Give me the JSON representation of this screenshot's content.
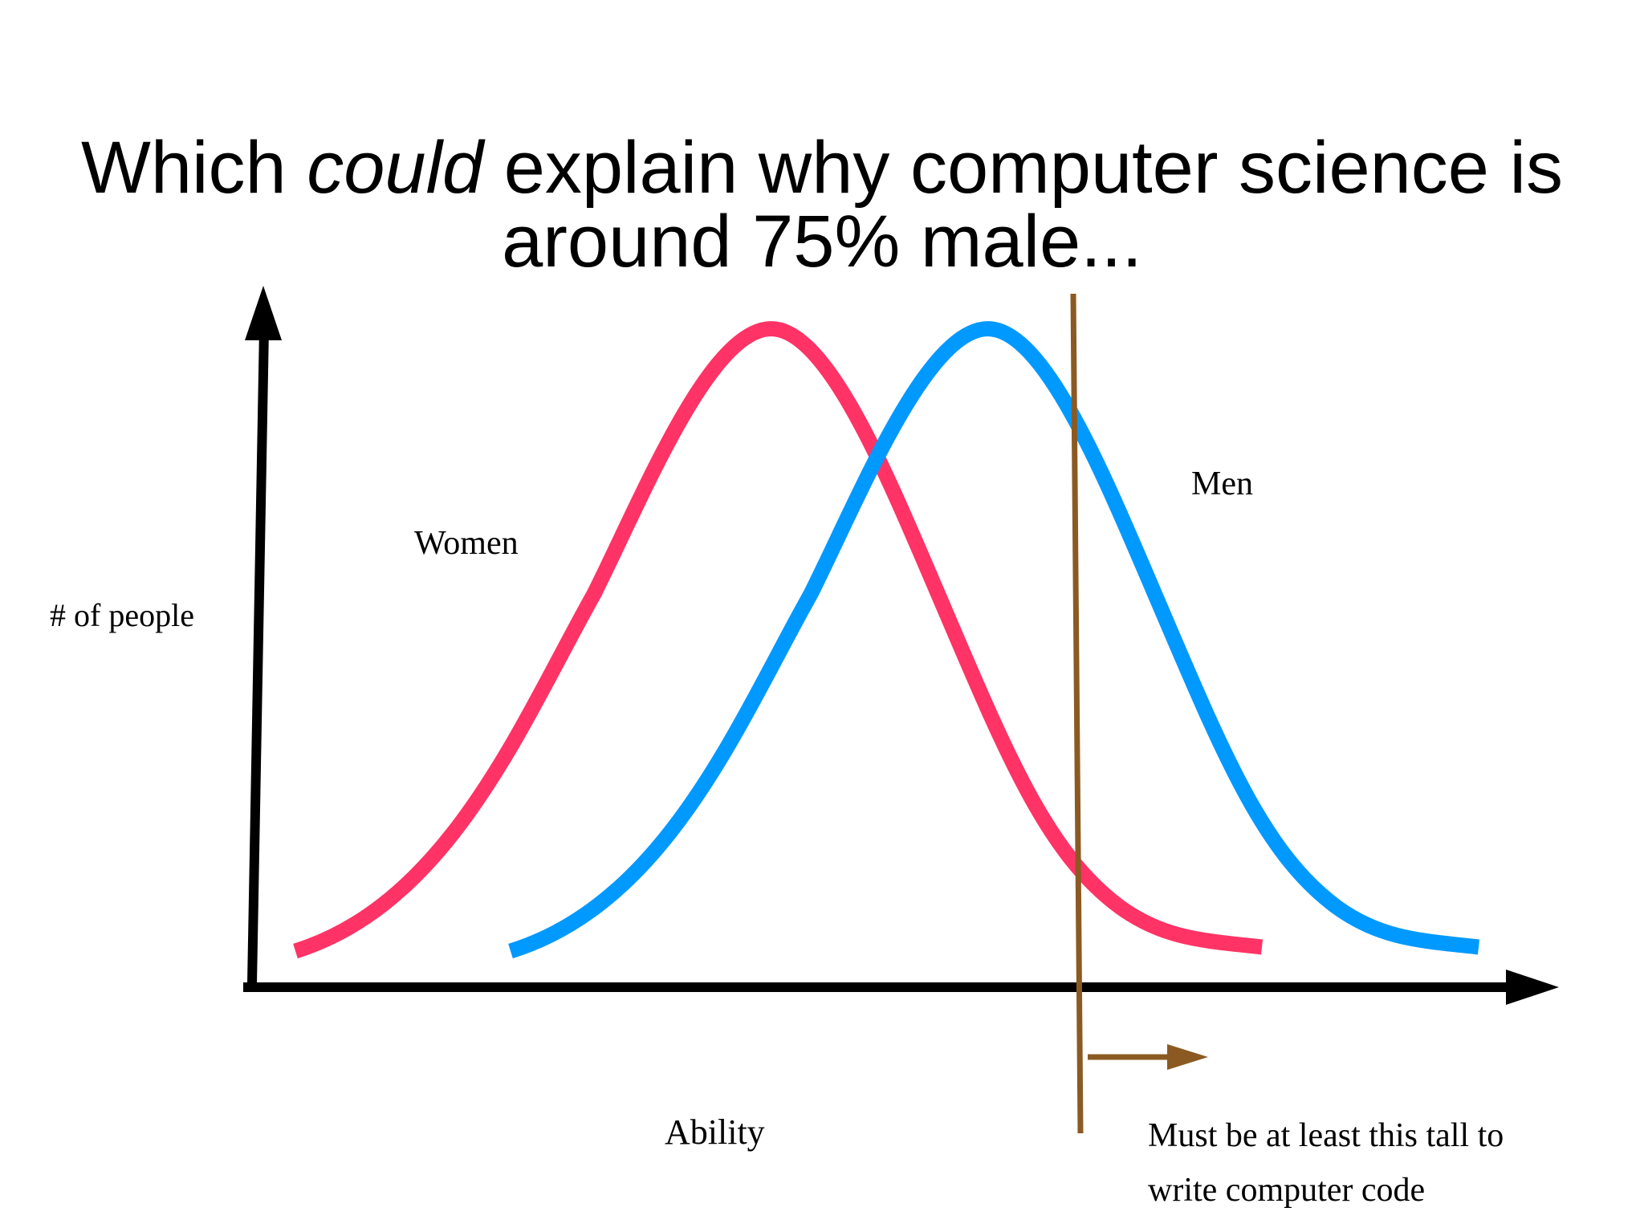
{
  "title": {
    "line1_prefix": "Which ",
    "line1_emphasis": "could",
    "line1_suffix": " explain why computer science is",
    "line2": "around 75% male..."
  },
  "axes": {
    "y_label": "# of people",
    "x_label": "Ability"
  },
  "curves": [
    {
      "label": "Women",
      "color": "#ff3366"
    },
    {
      "label": "Men",
      "color": "#0099ff"
    }
  ],
  "threshold": {
    "color": "#8b5a22",
    "caption_line1": "Must be at least this tall to",
    "caption_line2": "write computer code"
  }
}
